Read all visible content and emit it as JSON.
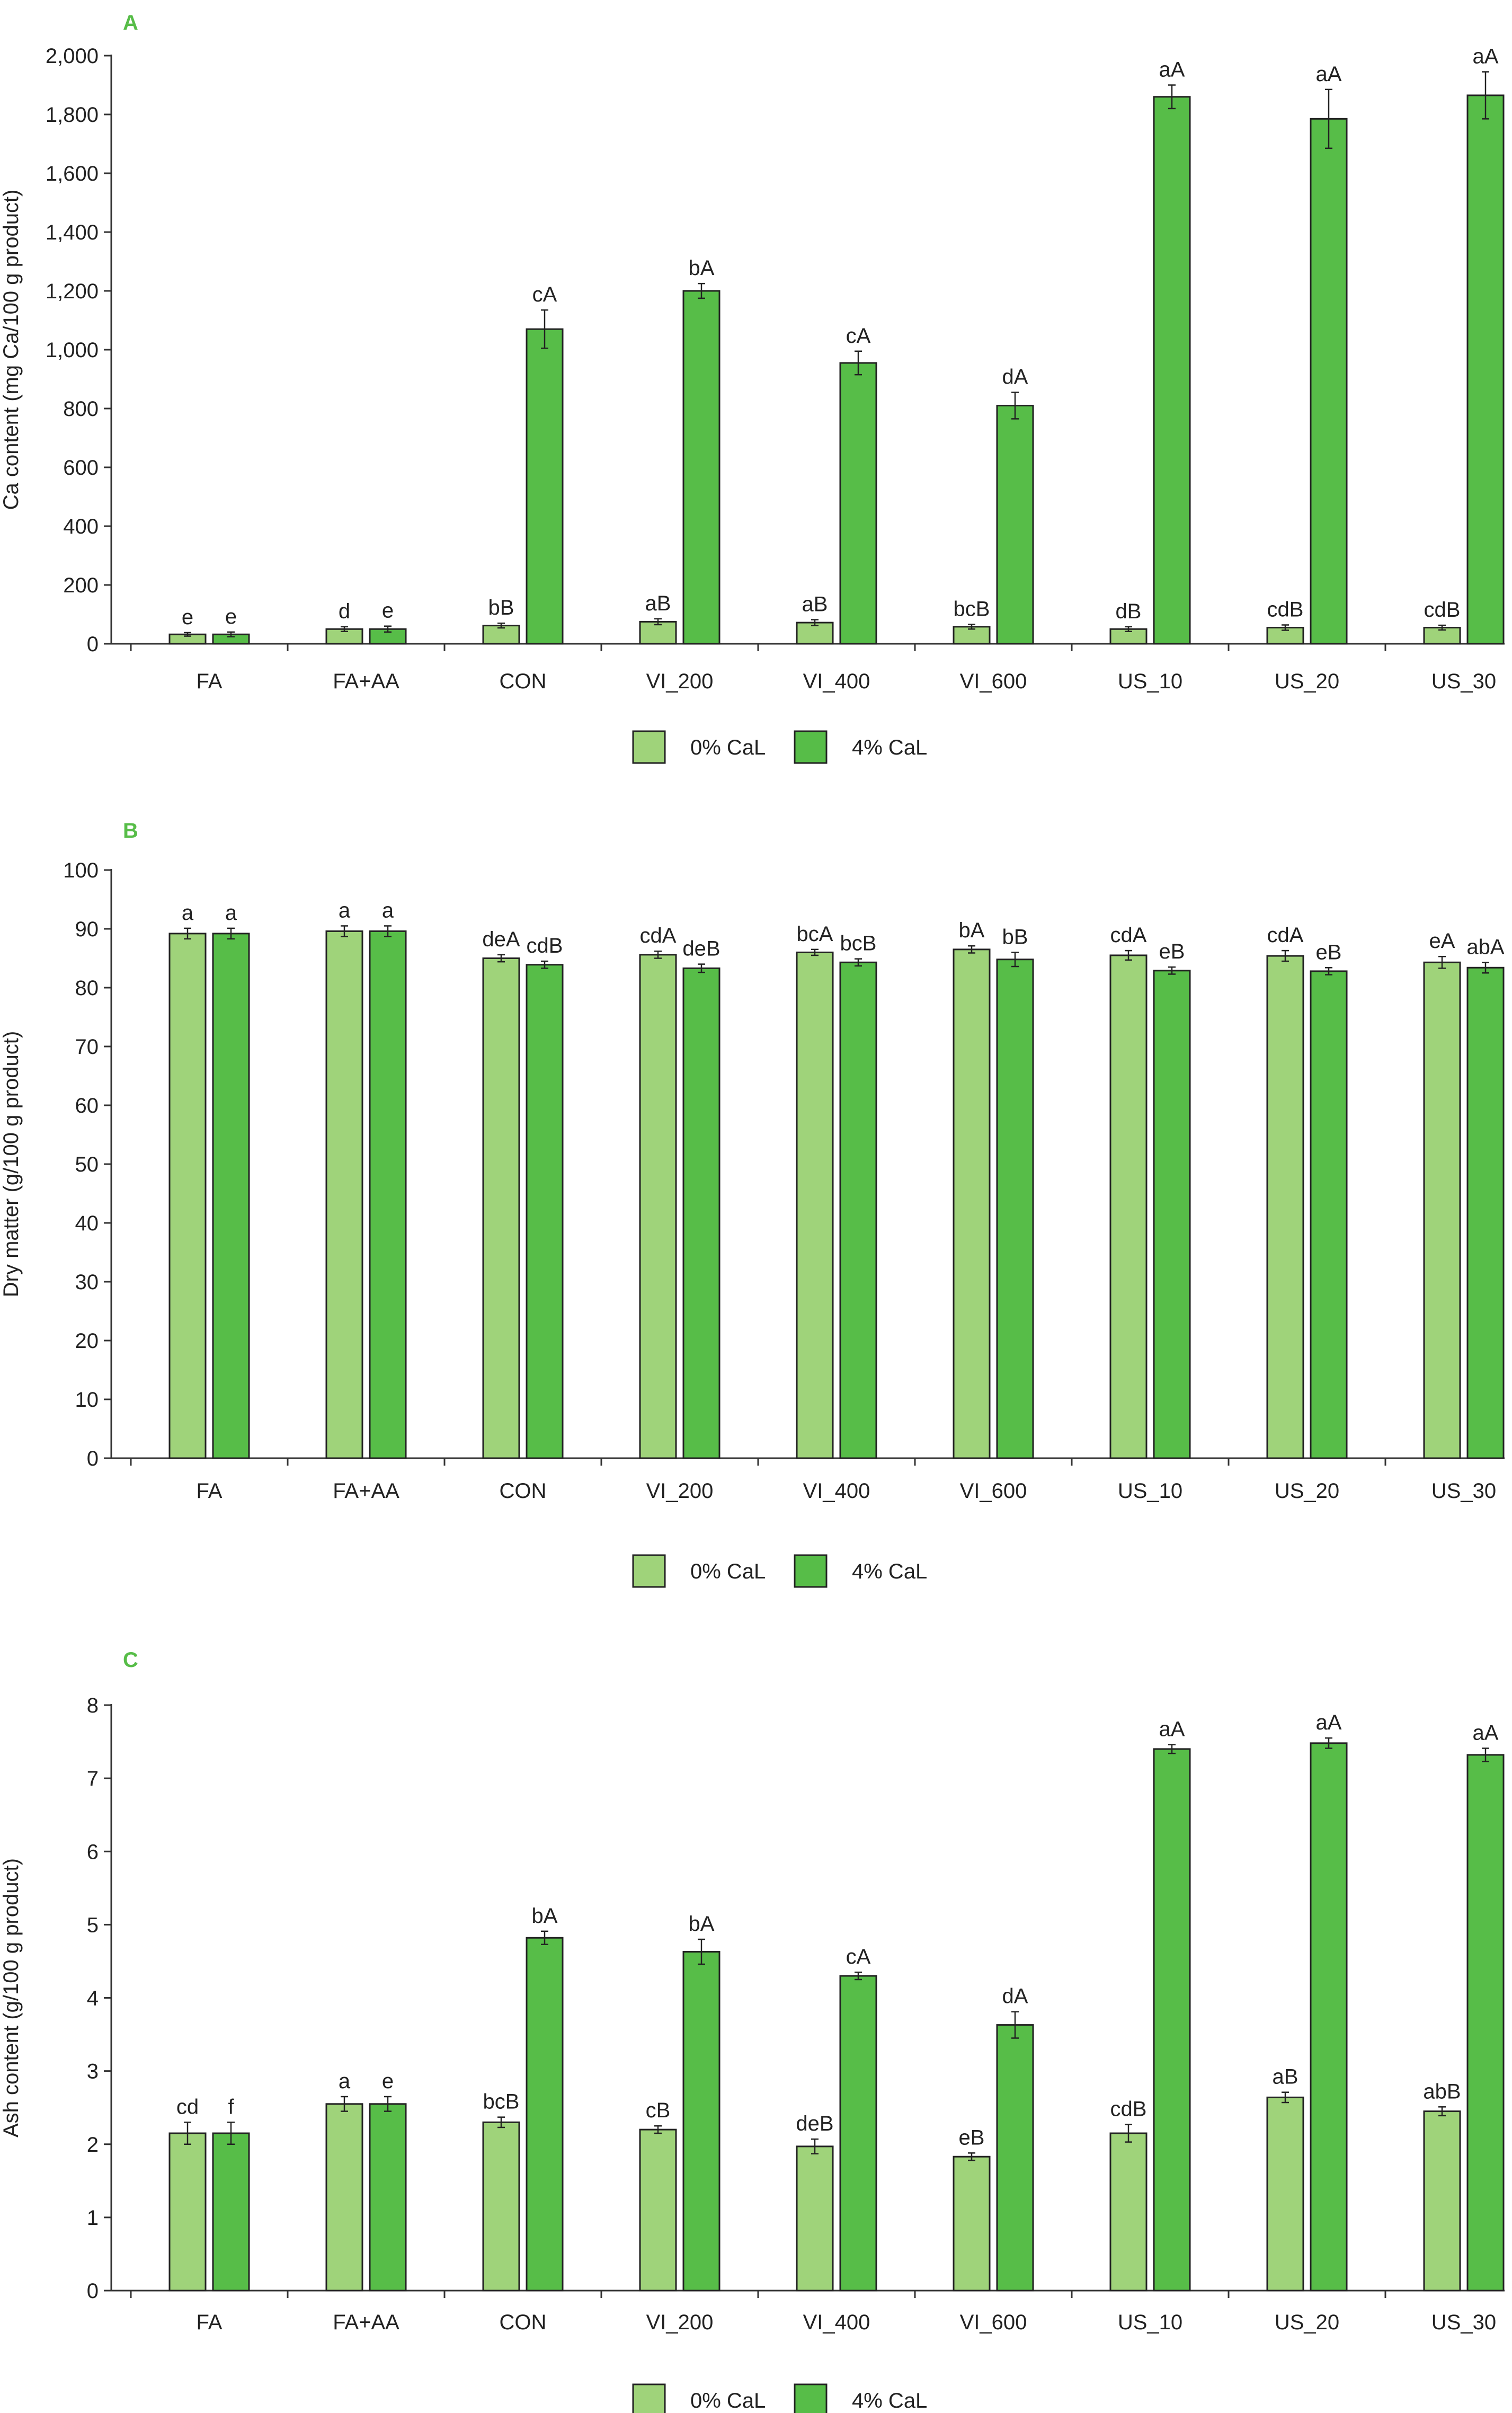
{
  "colors": {
    "light": "#9fd37a",
    "dark": "#57bd48",
    "axis": "#333333",
    "panel_letter": "#57bd48"
  },
  "chart_data": [
    {
      "type": "bar",
      "panel": "A",
      "categories": [
        "FA",
        "FA+AA",
        "CON",
        "VI_200",
        "VI_400",
        "VI_600",
        "US_10",
        "US_20",
        "US_30"
      ],
      "ylabel": "Ca content (mg Ca/100 g product)",
      "ylim": [
        0,
        2000
      ],
      "yticks": [
        0,
        200,
        400,
        600,
        800,
        1000,
        1200,
        1400,
        1600,
        1800,
        2000
      ],
      "ytick_labels": [
        "0",
        "200",
        "400",
        "600",
        "800",
        "1,000",
        "1,200",
        "1,400",
        "1,600",
        "1,800",
        "2,000"
      ],
      "series": [
        {
          "name": "0% CaL",
          "color": "light",
          "values": [
            32,
            50,
            62,
            75,
            72,
            58,
            50,
            55,
            55
          ],
          "errors": [
            6,
            8,
            8,
            10,
            10,
            8,
            8,
            9,
            8
          ],
          "labels": [
            "e",
            "d",
            "bB",
            "aB",
            "aB",
            "bcB",
            "dB",
            "cdB",
            "cdB"
          ]
        },
        {
          "name": "4% CaL",
          "color": "dark",
          "values": [
            32,
            50,
            1070,
            1200,
            955,
            810,
            1860,
            1785,
            1865
          ],
          "errors": [
            8,
            10,
            65,
            25,
            40,
            45,
            40,
            100,
            80
          ],
          "labels": [
            "e",
            "e",
            "cA",
            "bA",
            "cA",
            "dA",
            "aA",
            "aA",
            "aA"
          ]
        }
      ],
      "legend": [
        "0% CaL",
        "4% CaL"
      ],
      "legend_position": "bottom"
    },
    {
      "type": "bar",
      "panel": "B",
      "categories": [
        "FA",
        "FA+AA",
        "CON",
        "VI_200",
        "VI_400",
        "VI_600",
        "US_10",
        "US_20",
        "US_30"
      ],
      "ylabel": "Dry matter (g/100 g product)",
      "ylim": [
        0,
        100
      ],
      "yticks": [
        0,
        10,
        20,
        30,
        40,
        50,
        60,
        70,
        80,
        90,
        100
      ],
      "ytick_labels": [
        "0",
        "10",
        "20",
        "30",
        "40",
        "50",
        "60",
        "70",
        "80",
        "90",
        "100"
      ],
      "series": [
        {
          "name": "0% CaL",
          "color": "light",
          "values": [
            89.2,
            89.6,
            85.0,
            85.6,
            86.0,
            86.5,
            85.5,
            85.4,
            84.3
          ],
          "errors": [
            0.9,
            0.9,
            0.6,
            0.6,
            0.5,
            0.6,
            0.8,
            0.9,
            1.0
          ],
          "labels": [
            "a",
            "a",
            "deA",
            "cdA",
            "bcA",
            "bA",
            "cdA",
            "cdA",
            "eA"
          ]
        },
        {
          "name": "4% CaL",
          "color": "dark",
          "values": [
            89.2,
            89.6,
            83.9,
            83.3,
            84.3,
            84.8,
            82.9,
            82.8,
            83.4
          ],
          "errors": [
            0.9,
            0.9,
            0.6,
            0.7,
            0.6,
            1.2,
            0.6,
            0.6,
            0.9
          ],
          "labels": [
            "a",
            "a",
            "cdB",
            "deB",
            "bcB",
            "bB",
            "eB",
            "eB",
            "abA"
          ]
        }
      ],
      "legend": [
        "0% CaL",
        "4% CaL"
      ],
      "legend_position": "bottom"
    },
    {
      "type": "bar",
      "panel": "C",
      "categories": [
        "FA",
        "FA+AA",
        "CON",
        "VI_200",
        "VI_400",
        "VI_600",
        "US_10",
        "US_20",
        "US_30"
      ],
      "ylabel": "Ash content (g/100 g product)",
      "ylim": [
        0,
        8
      ],
      "yticks": [
        0,
        1,
        2,
        3,
        4,
        5,
        6,
        7,
        8
      ],
      "ytick_labels": [
        "0",
        "1",
        "2",
        "3",
        "4",
        "5",
        "6",
        "7",
        "8"
      ],
      "series": [
        {
          "name": "0% CaL",
          "color": "light",
          "values": [
            2.15,
            2.55,
            2.3,
            2.2,
            1.97,
            1.83,
            2.15,
            2.64,
            2.45
          ],
          "errors": [
            0.15,
            0.1,
            0.07,
            0.05,
            0.1,
            0.05,
            0.12,
            0.07,
            0.06
          ],
          "labels": [
            "cd",
            "a",
            "bcB",
            "cB",
            "deB",
            "eB",
            "cdB",
            "aB",
            "abB"
          ]
        },
        {
          "name": "4% CaL",
          "color": "dark",
          "values": [
            2.15,
            2.55,
            4.82,
            4.63,
            4.3,
            3.63,
            7.4,
            7.48,
            7.32
          ],
          "errors": [
            0.15,
            0.1,
            0.09,
            0.17,
            0.05,
            0.18,
            0.06,
            0.07,
            0.09
          ],
          "labels": [
            "f",
            "e",
            "bA",
            "bA",
            "cA",
            "dA",
            "aA",
            "aA",
            "aA"
          ]
        }
      ],
      "legend": [
        "0% CaL",
        "4% CaL"
      ],
      "legend_position": "bottom"
    }
  ]
}
